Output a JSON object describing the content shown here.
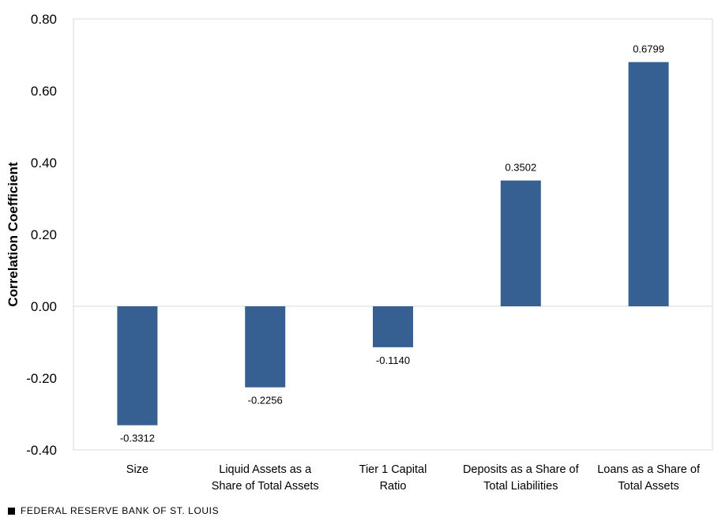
{
  "chart_data": {
    "type": "bar",
    "title": "",
    "xlabel": "",
    "ylabel": "Correlation Coefficient",
    "ylim": [
      -0.4,
      0.8
    ],
    "yticks": [
      -0.4,
      -0.2,
      0.0,
      0.2,
      0.4,
      0.6,
      0.8
    ],
    "ytick_labels": [
      "-0.40",
      "-0.20",
      "0.00",
      "0.20",
      "0.40",
      "0.60",
      "0.80"
    ],
    "categories": [
      [
        "Size"
      ],
      [
        "Liquid Assets as a",
        "Share of Total Assets"
      ],
      [
        "Tier 1 Capital",
        "Ratio"
      ],
      [
        "Deposits as a Share of",
        "Total Liabilities"
      ],
      [
        "Loans as a Share of",
        "Total Assets"
      ]
    ],
    "values": [
      -0.3312,
      -0.2256,
      -0.114,
      0.3502,
      0.6799
    ],
    "value_labels": [
      "-0.3312",
      "-0.2256",
      "-0.1140",
      "0.3502",
      "0.6799"
    ],
    "bar_color": "#366092",
    "grid": false
  },
  "footer": {
    "source": "FEDERAL RESERVE BANK OF ST. LOUIS"
  }
}
